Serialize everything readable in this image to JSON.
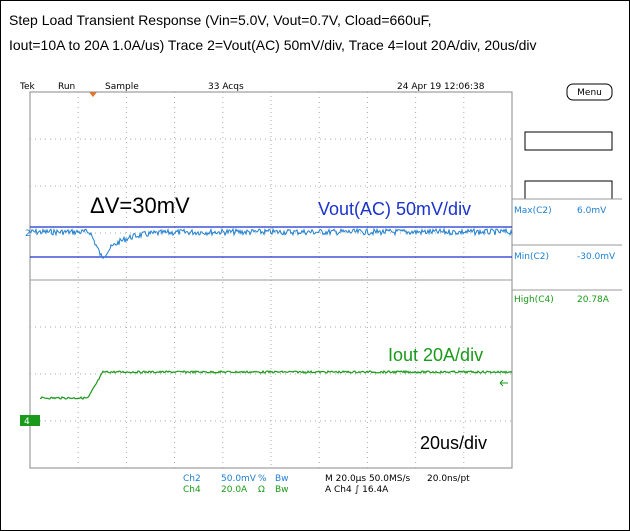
{
  "header": {
    "title_line1": "Step Load Transient Response (Vin=5.0V, Vout=0.7V, Cload=660uF,",
    "title_line2": "Iout=10A to 20A 1.0A/us) Trace 2=Vout(AC) 50mV/div, Trace 4=Iout 20A/div, 20us/div"
  },
  "scope": {
    "status": {
      "brand": "Tek",
      "state": "Run",
      "mode": "Sample",
      "acqs": "33 Acqs",
      "date": "24 Apr 19 12:06:38"
    },
    "menu": "Menu",
    "markers": {
      "ch2": "2",
      "ch4": "4"
    },
    "annotations": {
      "delta": "ΔV=30mV",
      "vout": "Vout(AC) 50mV/div",
      "iout": "Iout 20A/div",
      "time": "20us/div"
    },
    "measurements": [
      {
        "label": "Max(C2)",
        "value": "6.0mV"
      },
      {
        "label": "Min(C2)",
        "value": "-30.0mV"
      },
      {
        "label": "High(C4)",
        "value": "20.78A"
      }
    ],
    "footer": {
      "ch2": {
        "name": "Ch2",
        "scale": "50.0mV",
        "coupling": "%",
        "bw": "Bw"
      },
      "ch4": {
        "name": "Ch4",
        "scale": "20.0A",
        "coupling": "Ω",
        "bw": "Bw"
      },
      "timebase": "M 20.0µs 50.0MS/s",
      "resolution": "20.0ns/pt",
      "trigger": "A Ch4 ∫ 16.4A"
    }
  }
}
